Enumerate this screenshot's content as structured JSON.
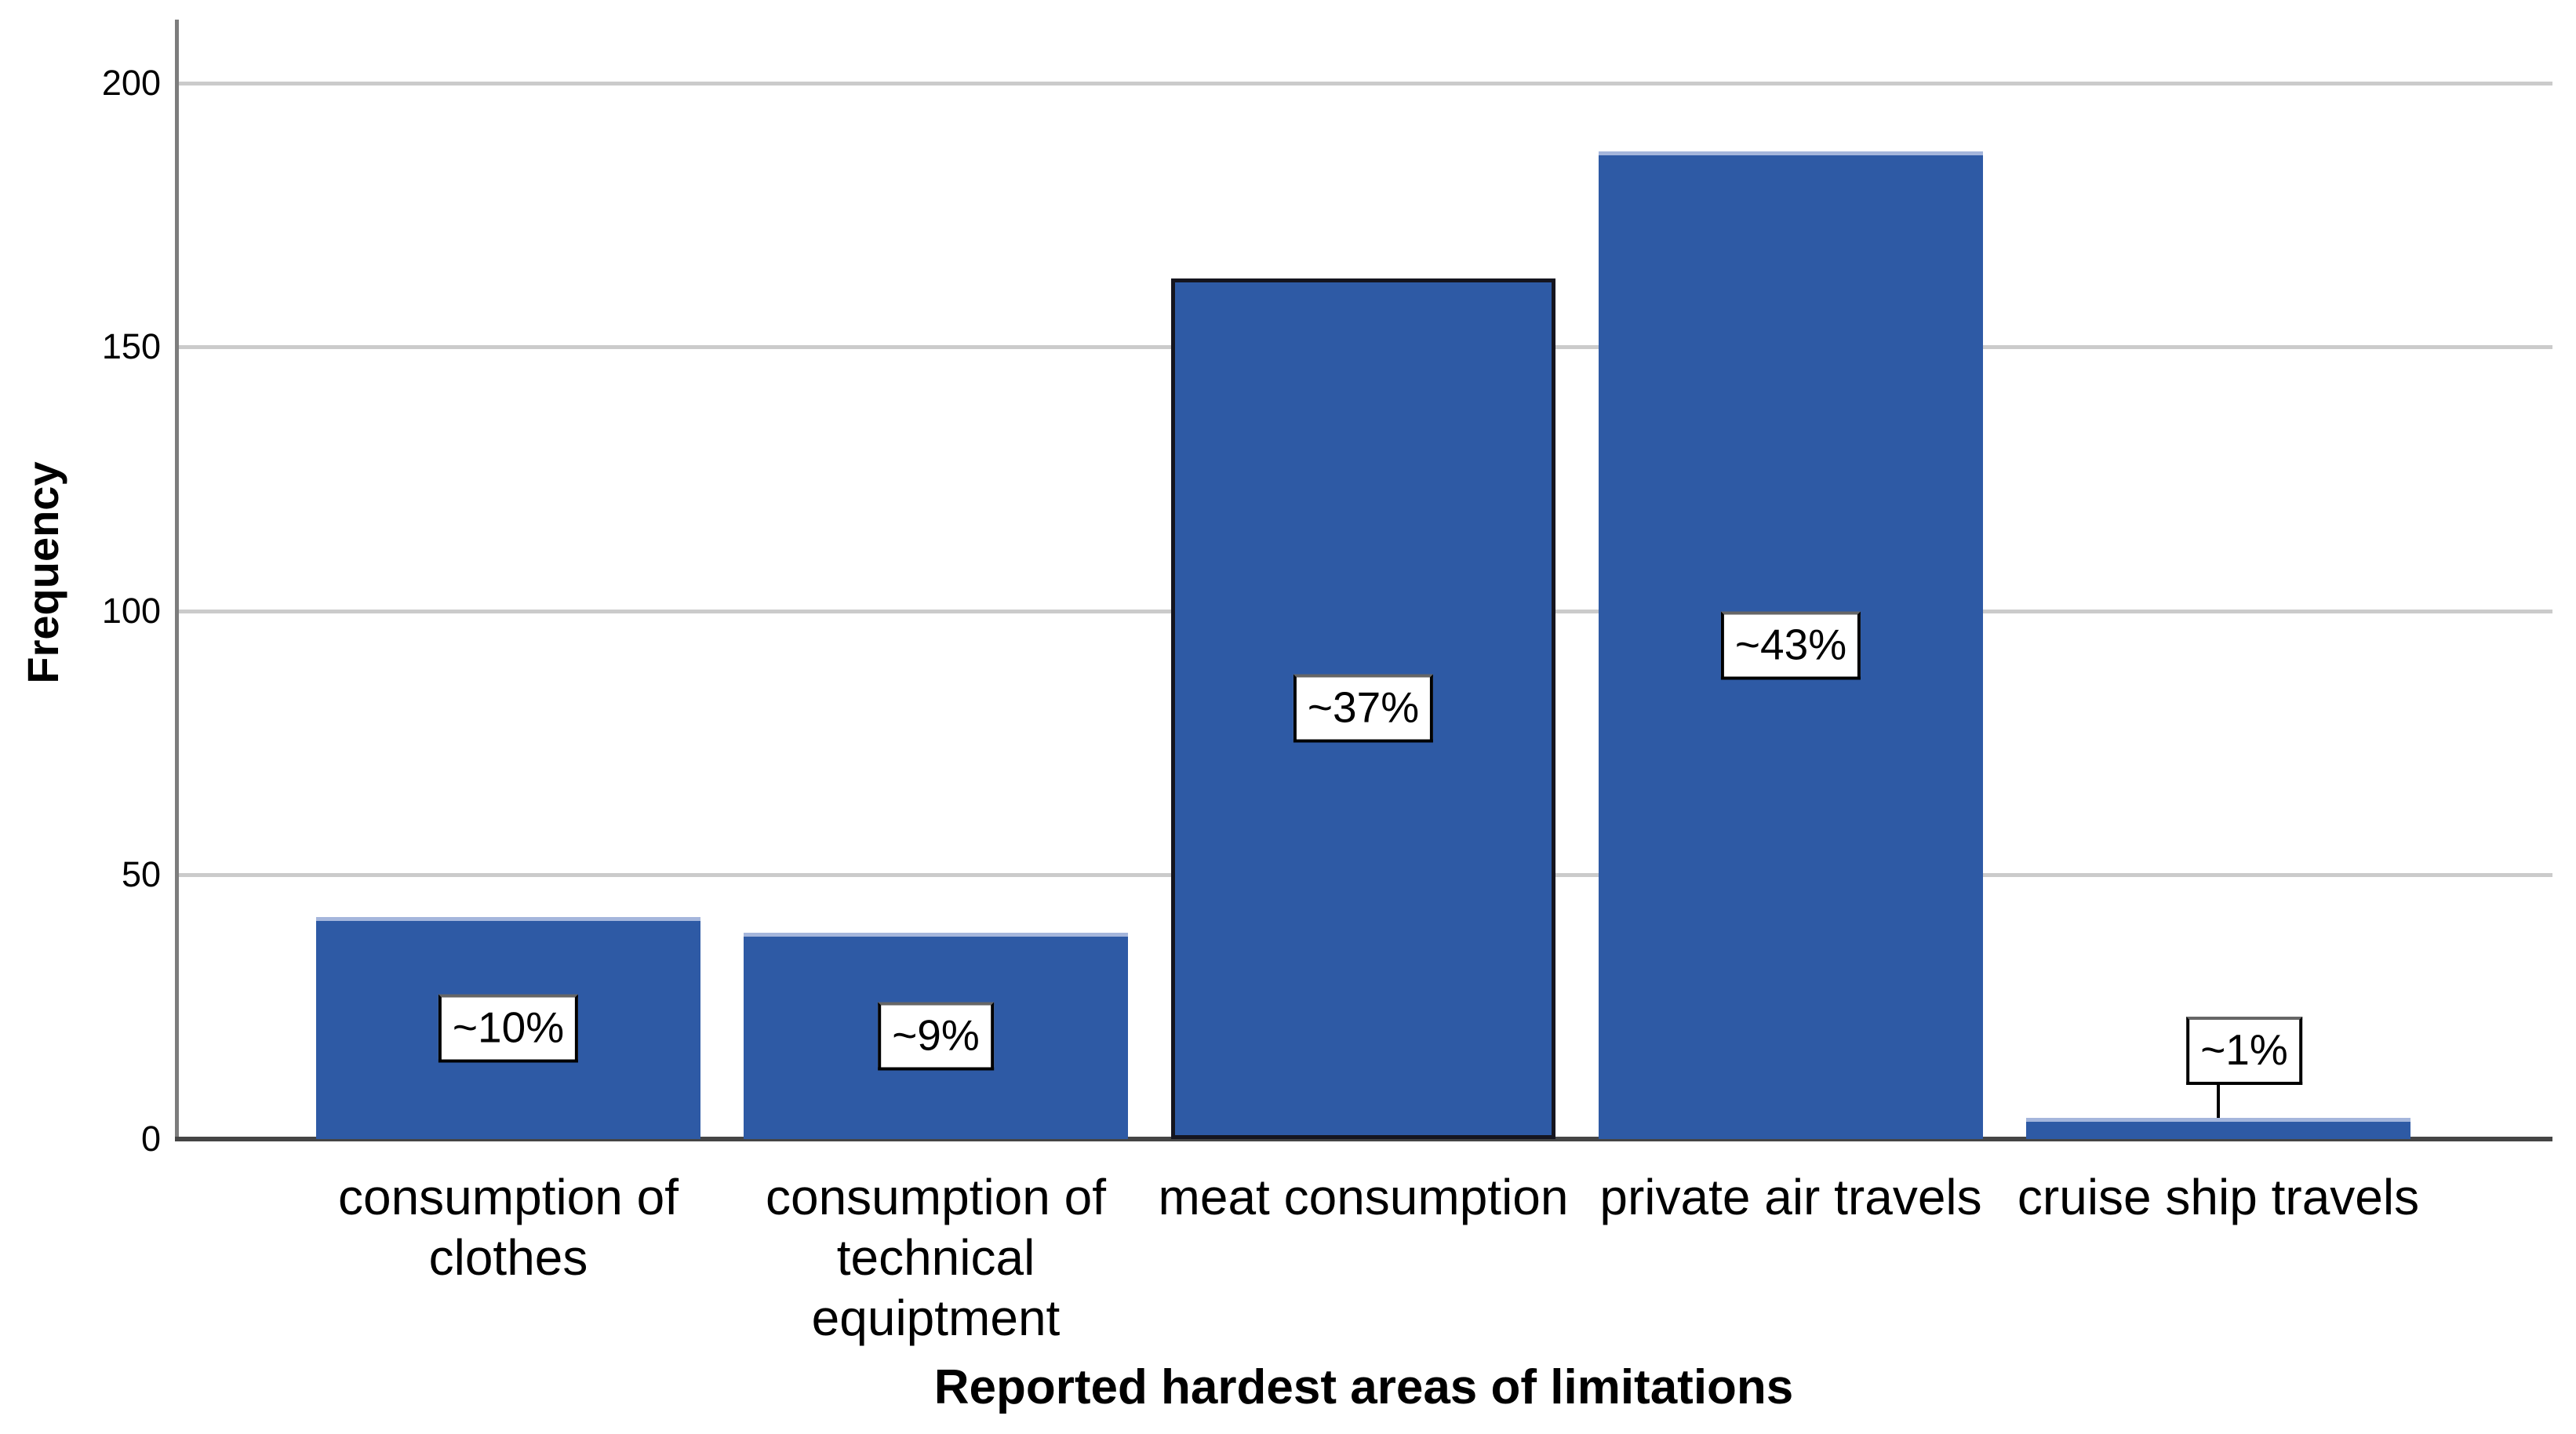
{
  "chart_data": {
    "type": "bar",
    "title": "",
    "xlabel": "Reported hardest areas of limitations",
    "ylabel": "Frequency",
    "categories": [
      "consumption of clothes",
      "consumption of technical equiptment",
      "meat consumption",
      "private air travels",
      "cruise ship travels"
    ],
    "category_lines": [
      [
        "consumption of",
        "clothes"
      ],
      [
        "consumption of",
        "technical",
        "equiptment"
      ],
      [
        "meat consumption"
      ],
      [
        "private air travels"
      ],
      [
        "cruise ship travels"
      ]
    ],
    "values": [
      42,
      39,
      163,
      187,
      4
    ],
    "bar_labels": [
      "~10%",
      "~9%",
      "~37%",
      "~43%",
      "~1%"
    ],
    "yticks": [
      0,
      50,
      100,
      150,
      200
    ],
    "ylim": [
      0,
      212
    ],
    "grid": "horizontal",
    "legend": "none",
    "outlined_bar_index": 2,
    "callout_bar_index": 4,
    "colors": {
      "bar_fill": "#2e5aa5",
      "bar_top_edge": "#a5b6dc",
      "bar_outline": "#15151f",
      "gridline": "#cbcbcb",
      "y_axis_line": "#7d7d7d",
      "x_axis_line": "#454545",
      "label_box_bg": "#ffffff",
      "label_box_border": "#000000",
      "text": "#000000"
    }
  }
}
